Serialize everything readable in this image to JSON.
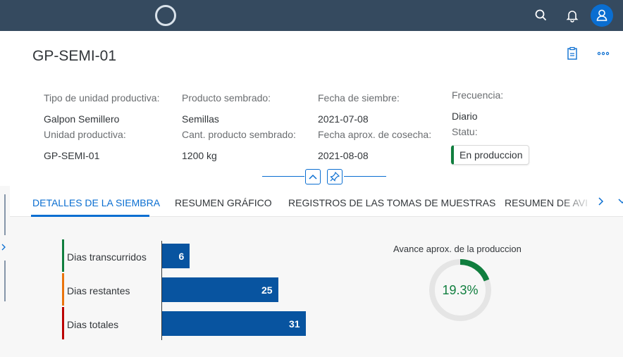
{
  "shell": {
    "icons": {
      "logo": "logo-ring",
      "search": "search-icon",
      "notifications": "bell-icon",
      "avatar": "user-icon"
    }
  },
  "header": {
    "title": "GP-SEMI-01",
    "icons": {
      "clipboard": "clipboard-icon",
      "more": "more-icon"
    },
    "attributes": {
      "tipo_label": "Tipo de unidad productiva:",
      "tipo_value": "Galpon Semillero",
      "unidad_label": "Unidad productiva:",
      "unidad_value": "GP-SEMI-01",
      "producto_label": "Producto sembrado:",
      "producto_value": "Semillas",
      "cant_label": "Cant. producto sembrado:",
      "cant_value": "1200 kg",
      "fecha_siembre_label": "Fecha de siembre:",
      "fecha_siembre_value": "2021-07-08",
      "fecha_cosecha_label": "Fecha aprox. de cosecha:",
      "fecha_cosecha_value": "2021-08-08",
      "frecuencia_label": "Frecuencia:",
      "frecuencia_value": "Diario",
      "statu_label": "Statu:",
      "statu_value": "En produccion"
    },
    "colors": {
      "status": "#107e3e",
      "accent": "#0a6ed1"
    }
  },
  "tabs": [
    {
      "label": "DETALLES DE LA SIEMBRA",
      "active": true
    },
    {
      "label": "RESUMEN GRÁFICO"
    },
    {
      "label": "REGISTROS DE LAS TOMAS DE MUESTRAS"
    },
    {
      "label": "RESUMEN DE AVI"
    }
  ],
  "chart_data": [
    {
      "type": "bar",
      "orientation": "horizontal",
      "categories": [
        "Dias transcurridos",
        "Dias restantes",
        "Dias totales"
      ],
      "values": [
        6,
        25,
        31
      ],
      "category_colors": [
        "#107e3e",
        "#e9730c",
        "#bb0000"
      ],
      "bar_color": "#0854a0",
      "xlim": [
        0,
        31
      ]
    },
    {
      "type": "pie",
      "title": "Avance aprox. de la produccion",
      "value": 19.3,
      "value_label": "19.3%",
      "color": "#107e3e",
      "track_color": "#e5e5e5"
    }
  ]
}
